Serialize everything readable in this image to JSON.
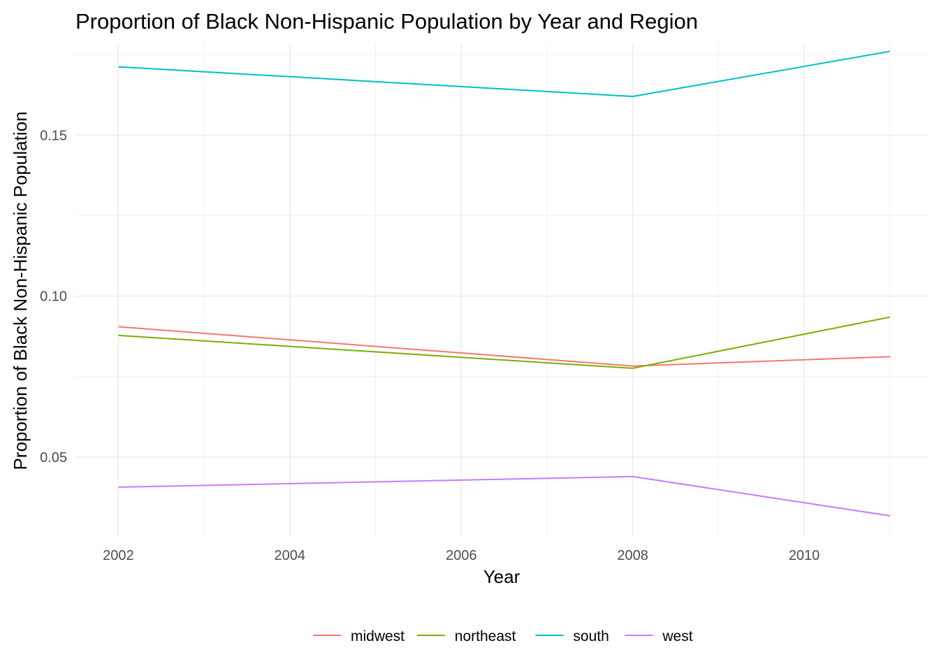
{
  "chart_data": {
    "type": "line",
    "title": "Proportion of Black Non-Hispanic Population by Year and Region",
    "xlabel": "Year",
    "ylabel": "Proportion of Black Non-Hispanic Population",
    "x": [
      2002,
      2008,
      2011
    ],
    "xlim": [
      2001.5,
      2011.45
    ],
    "ylim": [
      0.0255,
      0.1785
    ],
    "x_ticks": [
      2002,
      2004,
      2006,
      2008,
      2010
    ],
    "y_ticks": [
      0.05,
      0.1,
      0.15
    ],
    "x_tick_labels": [
      "2002",
      "2004",
      "2006",
      "2008",
      "2010"
    ],
    "y_tick_labels": [
      "0.05",
      "0.10",
      "0.15"
    ],
    "grid": true,
    "legend_position": "bottom",
    "series": [
      {
        "name": "midwest",
        "color": "#F8766D",
        "values": [
          0.0905,
          0.0783,
          0.0812
        ]
      },
      {
        "name": "northeast",
        "color": "#7CAE00",
        "values": [
          0.0878,
          0.0776,
          0.0935
        ]
      },
      {
        "name": "south",
        "color": "#00BFC4",
        "values": [
          0.1712,
          0.162,
          0.176
        ]
      },
      {
        "name": "west",
        "color": "#C77CFF",
        "values": [
          0.0407,
          0.044,
          0.0318
        ]
      }
    ]
  }
}
